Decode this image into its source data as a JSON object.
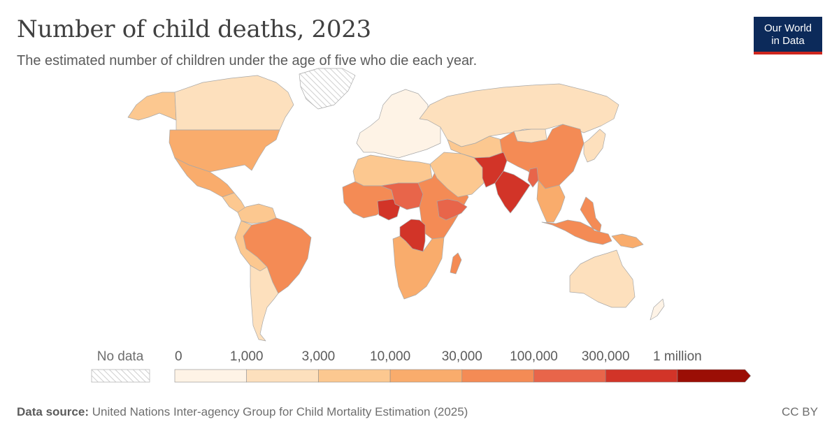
{
  "header": {
    "title": "Number of child deaths, 2023",
    "subtitle": "The estimated number of children under the age of five who die each year."
  },
  "logo": {
    "line1": "Our World",
    "line2": "in Data"
  },
  "legend": {
    "no_data_label": "No data",
    "bins": [
      {
        "label": "0",
        "color": "#fef3e6"
      },
      {
        "label": "1,000",
        "color": "#fde0bd"
      },
      {
        "label": "3,000",
        "color": "#fcc890"
      },
      {
        "label": "10,000",
        "color": "#f9ac6c"
      },
      {
        "label": "30,000",
        "color": "#f48b55"
      },
      {
        "label": "100,000",
        "color": "#e8654a"
      },
      {
        "label": "300,000",
        "color": "#d23428"
      },
      {
        "label": "1 million",
        "color": "#9b0e05"
      }
    ]
  },
  "footer": {
    "source_label": "Data source:",
    "source_text": "United Nations Inter-agency Group for Child Mortality Estimation (2025)",
    "license": "CC BY"
  },
  "regions": [
    {
      "name": "alaska",
      "color": "#fcc890"
    },
    {
      "name": "canada",
      "color": "#fde0bd"
    },
    {
      "name": "greenland",
      "color": "none"
    },
    {
      "name": "usa",
      "color": "#f9ac6c"
    },
    {
      "name": "mexico",
      "color": "#f9ac6c"
    },
    {
      "name": "central-america",
      "color": "#fcc890"
    },
    {
      "name": "colombia-venezuela",
      "color": "#fcc890"
    },
    {
      "name": "brazil",
      "color": "#f48b55"
    },
    {
      "name": "peru-bolivia",
      "color": "#fcc890"
    },
    {
      "name": "southern-cone",
      "color": "#fde0bd"
    },
    {
      "name": "europe",
      "color": "#fef3e6"
    },
    {
      "name": "russia",
      "color": "#fde0bd"
    },
    {
      "name": "north-africa",
      "color": "#fcc890"
    },
    {
      "name": "west-africa",
      "color": "#f48b55"
    },
    {
      "name": "nigeria",
      "color": "#d23428"
    },
    {
      "name": "sahel",
      "color": "#e8654a"
    },
    {
      "name": "east-africa",
      "color": "#f48b55"
    },
    {
      "name": "ethiopia",
      "color": "#e8654a"
    },
    {
      "name": "dr-congo",
      "color": "#d23428"
    },
    {
      "name": "southern-africa",
      "color": "#f9ac6c"
    },
    {
      "name": "madagascar",
      "color": "#f48b55"
    },
    {
      "name": "middle-east",
      "color": "#fcc890"
    },
    {
      "name": "central-asia",
      "color": "#fcc890"
    },
    {
      "name": "mongolia",
      "color": "#fde0bd"
    },
    {
      "name": "china",
      "color": "#f48b55"
    },
    {
      "name": "pakistan-afghanistan",
      "color": "#d23428"
    },
    {
      "name": "india",
      "color": "#d23428"
    },
    {
      "name": "bangladesh",
      "color": "#e8654a"
    },
    {
      "name": "southeast-asia",
      "color": "#f9ac6c"
    },
    {
      "name": "japan-korea",
      "color": "#fde0bd"
    },
    {
      "name": "indonesia-philippines",
      "color": "#f48b55"
    },
    {
      "name": "papua",
      "color": "#f9ac6c"
    },
    {
      "name": "australia",
      "color": "#fde0bd"
    },
    {
      "name": "new-zealand",
      "color": "#fef3e6"
    }
  ]
}
